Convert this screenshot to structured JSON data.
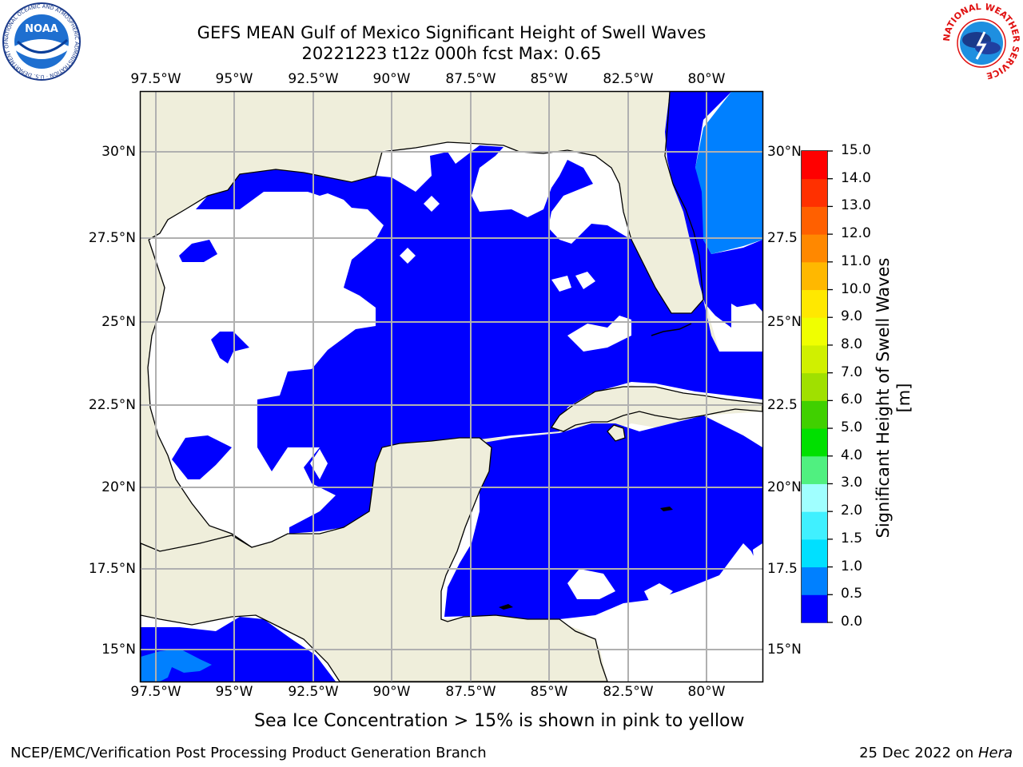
{
  "header": {
    "title_line1": "GEFS MEAN Gulf of Mexico Significant Height of Swell Waves",
    "title_line2": "20221223 t12z 000h fcst   Max: 0.65"
  },
  "logos": {
    "noaa_text": "NOAA",
    "noaa_ring": "NATIONAL OCEANIC AND ATMOSPHERIC ADMINISTRATION · U.S. DEPARTMENT OF COMMERCE",
    "nws_ring": "NATIONAL WEATHER SERVICE"
  },
  "map": {
    "lon_labels": [
      "97.5°W",
      "95°W",
      "92.5°W",
      "90°W",
      "87.5°W",
      "85°W",
      "82.5°W",
      "80°W"
    ],
    "lat_labels_left": [
      "30°N",
      "27.5°N",
      "25°N",
      "22.5°N",
      "20°N",
      "17.5°N",
      "15°N"
    ],
    "lat_labels_right": [
      "30°N",
      "27.5",
      "25°N",
      "22.5",
      "20°N",
      "17.5",
      "15°N"
    ],
    "colors": {
      "land": "#efeedb",
      "sea_no_data": "#ffffff",
      "swell_0_0_5": "#0000ff",
      "swell_0_5_1_0": "#0080ff",
      "grid": "#b0b0b0"
    }
  },
  "colorbar": {
    "ticks": [
      "15.0",
      "14.0",
      "13.0",
      "12.0",
      "11.0",
      "10.0",
      "9.0",
      "8.0",
      "7.0",
      "6.0",
      "5.0",
      "4.0",
      "3.0",
      "2.0",
      "1.5",
      "1.0",
      "0.5",
      "0.0"
    ],
    "colors": [
      "#0000ff",
      "#0080ff",
      "#00e0ff",
      "#40f0ff",
      "#a0ffff",
      "#50f080",
      "#00e000",
      "#40d000",
      "#a0e000",
      "#d0f000",
      "#f0ff00",
      "#ffe800",
      "#ffb800",
      "#ff8800",
      "#ff6000",
      "#ff3000",
      "#ff0000"
    ],
    "label": "Significant Height of Swell Waves [m]"
  },
  "caption": "Sea Ice Concentration > 15% is shown in pink to yellow",
  "footer": {
    "left": "NCEP/EMC/Verification Post Processing Product Generation Branch",
    "right_date": "25 Dec 2022 on ",
    "right_host": "Hera"
  }
}
